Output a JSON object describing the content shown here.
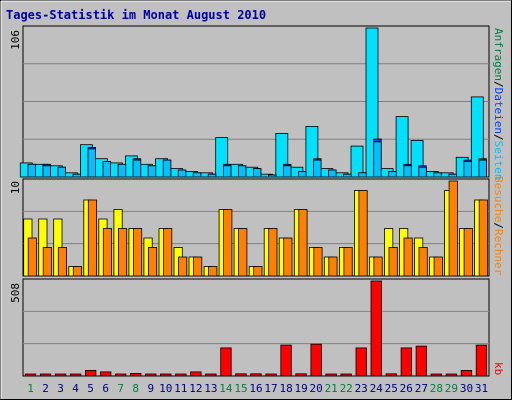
{
  "title": "Tages-Statistik im Monat August 2010",
  "colors": {
    "hits_fill": "#00e0ff",
    "files_fill": "#0040ff",
    "pages_fill": "#00c0ff",
    "sites_fill": "#ff8000",
    "visits_fill": "#ffff00",
    "kbytes_fill": "#ff0000",
    "weekend_label": "#008040",
    "weekday_label": "#000080",
    "title_color": "#0000a0",
    "panel_bg": "#c0c0c0",
    "grid": "#808080"
  },
  "legend": {
    "top_right": [
      "Anfragen",
      "/",
      "Dateien",
      "/",
      "Seiten"
    ],
    "mid_right": [
      "Besuche",
      "/",
      "Rechner"
    ],
    "bottom_right": "kb"
  },
  "chart_data": [
    {
      "type": "bar",
      "name": "top",
      "ymax_label": "106",
      "ylim": [
        0,
        106
      ],
      "categories": [
        "1",
        "2",
        "3",
        "4",
        "5",
        "6",
        "7",
        "8",
        "9",
        "10",
        "11",
        "12",
        "13",
        "14",
        "15",
        "16",
        "17",
        "18",
        "19",
        "20",
        "21",
        "22",
        "23",
        "24",
        "25",
        "26",
        "27",
        "28",
        "29",
        "30",
        "31"
      ],
      "series": [
        {
          "name": "Anfragen",
          "values": [
            10,
            9,
            8,
            3,
            23,
            13,
            10,
            15,
            9,
            13,
            6,
            4,
            3,
            28,
            9,
            7,
            2,
            31,
            7,
            36,
            6,
            3,
            22,
            106,
            6,
            43,
            26,
            4,
            3,
            14,
            57
          ]
        },
        {
          "name": "Dateien",
          "values": [
            9,
            9,
            7,
            2,
            21,
            11,
            9,
            13,
            8,
            12,
            5,
            3,
            2,
            9,
            8,
            6,
            1,
            9,
            4,
            13,
            5,
            2,
            3,
            27,
            4,
            9,
            8,
            3,
            2,
            12,
            13
          ]
        },
        {
          "name": "Seiten",
          "values": [
            9,
            8,
            7,
            2,
            20,
            11,
            9,
            12,
            8,
            12,
            5,
            3,
            2,
            8,
            8,
            6,
            1,
            8,
            4,
            12,
            5,
            2,
            3,
            25,
            4,
            8,
            7,
            3,
            2,
            11,
            12
          ]
        }
      ]
    },
    {
      "type": "bar",
      "name": "middle",
      "ymax_label": "10",
      "ylim": [
        0,
        10
      ],
      "categories": [
        "1",
        "2",
        "3",
        "4",
        "5",
        "6",
        "7",
        "8",
        "9",
        "10",
        "11",
        "12",
        "13",
        "14",
        "15",
        "16",
        "17",
        "18",
        "19",
        "20",
        "21",
        "22",
        "23",
        "24",
        "25",
        "26",
        "27",
        "28",
        "29",
        "30",
        "31"
      ],
      "series": [
        {
          "name": "Besuche",
          "values": [
            6,
            6,
            6,
            1,
            8,
            6,
            7,
            5,
            4,
            5,
            3,
            2,
            1,
            7,
            5,
            1,
            5,
            4,
            7,
            3,
            2,
            3,
            9,
            2,
            5,
            5,
            4,
            2,
            9,
            5,
            8
          ]
        },
        {
          "name": "Rechner",
          "values": [
            4,
            3,
            3,
            1,
            8,
            5,
            5,
            5,
            3,
            5,
            2,
            2,
            1,
            7,
            5,
            1,
            5,
            4,
            7,
            3,
            2,
            3,
            9,
            2,
            3,
            4,
            3,
            2,
            10,
            5,
            8
          ]
        }
      ]
    },
    {
      "type": "bar",
      "name": "bottom",
      "ymax_label": "508",
      "ylim": [
        0,
        508
      ],
      "categories": [
        "1",
        "2",
        "3",
        "4",
        "5",
        "6",
        "7",
        "8",
        "9",
        "10",
        "11",
        "12",
        "13",
        "14",
        "15",
        "16",
        "17",
        "18",
        "19",
        "20",
        "21",
        "22",
        "23",
        "24",
        "25",
        "26",
        "27",
        "28",
        "29",
        "30",
        "31"
      ],
      "series": [
        {
          "name": "kb",
          "values": [
            8,
            10,
            8,
            8,
            30,
            22,
            10,
            14,
            8,
            8,
            8,
            22,
            8,
            150,
            12,
            12,
            4,
            165,
            12,
            170,
            10,
            4,
            150,
            508,
            12,
            150,
            160,
            10,
            8,
            30,
            165
          ]
        }
      ]
    }
  ],
  "weekend_days": [
    "1",
    "7",
    "8",
    "14",
    "15",
    "21",
    "22",
    "28",
    "29"
  ]
}
